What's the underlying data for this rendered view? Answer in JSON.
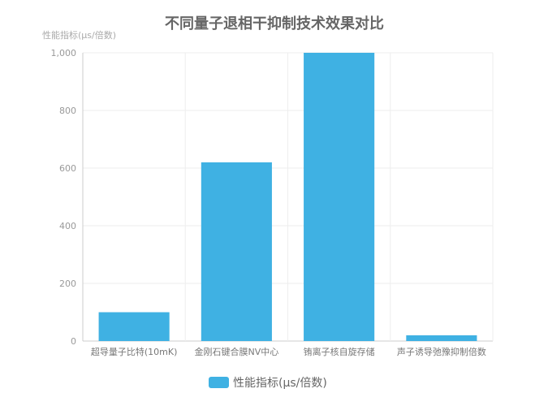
{
  "chart_data": {
    "type": "bar",
    "title": "不同量子退相干抑制技术效果对比",
    "ylabel": "性能指标(μs/倍数)",
    "xlabel": "",
    "categories": [
      "超导量子比特(10mK)",
      "金刚石键合膜NV中心",
      "铕离子核自旋存储",
      "声子诱导弛豫抑制倍数"
    ],
    "series": [
      {
        "name": "性能指标(μs/倍数)",
        "values": [
          100,
          620,
          1000,
          20
        ]
      }
    ],
    "ylim": [
      0,
      1000
    ],
    "yticks": [
      "0",
      "200",
      "400",
      "600",
      "800",
      "1,000"
    ],
    "grid": true,
    "legend": "bottom",
    "colors": {
      "bar": "#3fb1e3",
      "title": "#666666",
      "axis_text": "#999999"
    }
  }
}
